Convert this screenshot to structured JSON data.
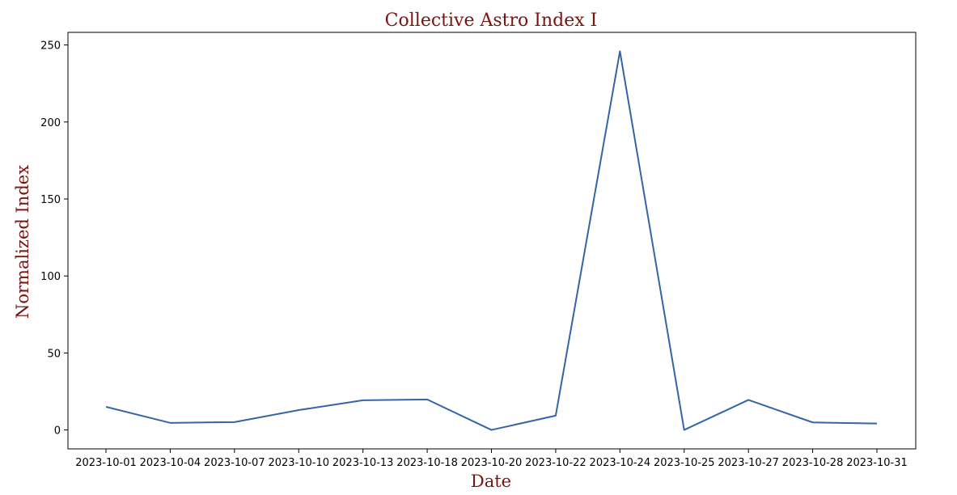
{
  "chart_data": {
    "type": "line",
    "title": "Collective Astro Index I",
    "xlabel": "Date",
    "ylabel": "Normalized Index",
    "categories": [
      "2023-10-01",
      "2023-10-04",
      "2023-10-07",
      "2023-10-10",
      "2023-10-13",
      "2023-10-18",
      "2023-10-20",
      "2023-10-22",
      "2023-10-24",
      "2023-10-25",
      "2023-10-27",
      "2023-10-28",
      "2023-10-31"
    ],
    "series": [
      {
        "values": [
          15.0,
          4.6,
          5.1,
          12.9,
          19.3,
          19.8,
          0.0,
          9.3,
          245.9,
          0.0,
          19.5,
          4.9,
          4.2
        ]
      }
    ],
    "ylim": [
      -12.3,
      258.2
    ],
    "yticks": [
      0,
      50,
      100,
      150,
      200,
      250
    ],
    "grid": false,
    "legend": "none",
    "colors": {
      "line": "#3465a8",
      "title": "#7a1410",
      "axis_title": "#7a1410",
      "text": "#000000"
    }
  }
}
